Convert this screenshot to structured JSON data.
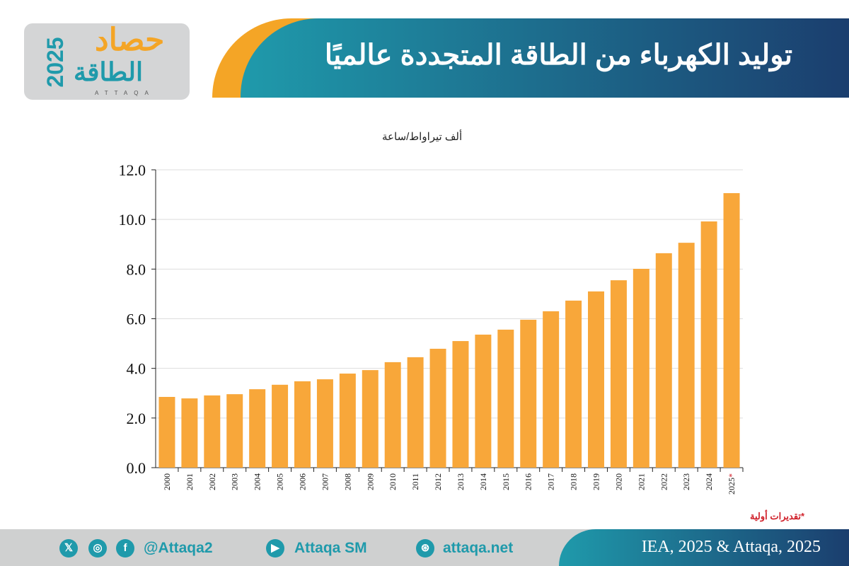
{
  "logo": {
    "line1": "حصاد",
    "line2": "الطاقة",
    "year": "2025",
    "latin": "ATTAQA"
  },
  "header": {
    "title": "توليد الكهرباء من الطاقة المتجددة عالميًا"
  },
  "colors": {
    "bar": "#f8a73a",
    "teal": "#1f9aab",
    "navy": "#1b3e6e",
    "orange": "#f4a526"
  },
  "chart_data": {
    "type": "bar",
    "ylabel": "ألف تيراواط/ساعة",
    "ylim": [
      0,
      12
    ],
    "yticks": [
      "0.0",
      "2.0",
      "4.0",
      "6.0",
      "8.0",
      "10.0",
      "12.0"
    ],
    "grid": true,
    "categories": [
      "2000",
      "2001",
      "2002",
      "2003",
      "2004",
      "2005",
      "2006",
      "2007",
      "2008",
      "2009",
      "2010",
      "2011",
      "2012",
      "2013",
      "2014",
      "2015",
      "2016",
      "2017",
      "2018",
      "2019",
      "2020",
      "2021",
      "2022",
      "2023",
      "2024",
      "2025*"
    ],
    "values": [
      2.85,
      2.79,
      2.91,
      2.96,
      3.16,
      3.34,
      3.48,
      3.56,
      3.79,
      3.93,
      4.25,
      4.45,
      4.79,
      5.1,
      5.36,
      5.56,
      5.96,
      6.3,
      6.73,
      7.1,
      7.55,
      8.01,
      8.64,
      9.06,
      9.92,
      11.06
    ],
    "note": "*تقديرات أولية"
  },
  "footer": {
    "handle": "@Attaqa2",
    "youtube": "Attaqa SM",
    "site": "attaqa.net",
    "source": "IEA, 2025 & Attaqa, 2025",
    "icons": [
      "x-icon",
      "instagram-icon",
      "facebook-icon",
      "youtube-icon",
      "web-icon"
    ]
  }
}
